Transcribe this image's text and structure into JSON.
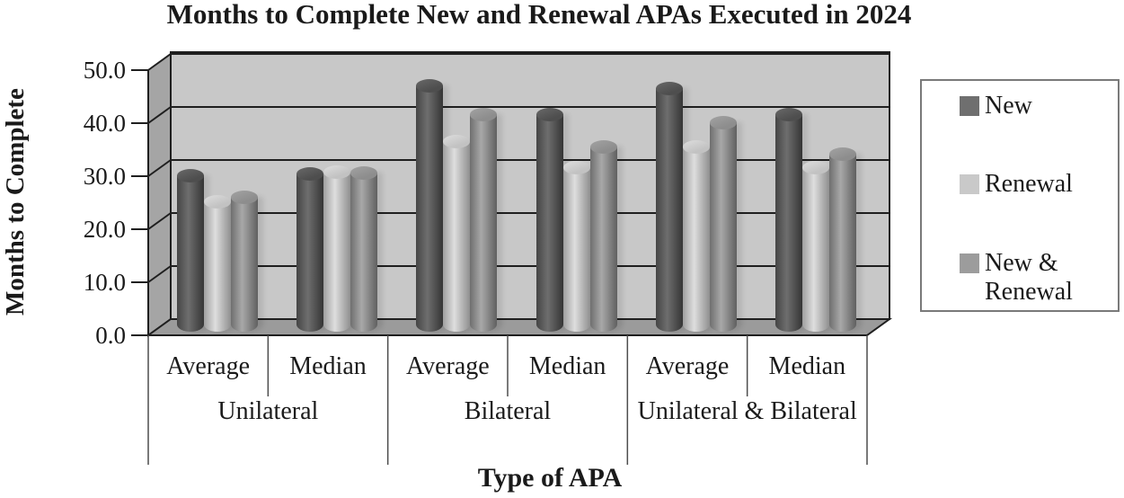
{
  "title": "Months to Complete New and Renewal APAs Executed in 2024",
  "y_axis": {
    "label": "Months to Complete",
    "tick_labels": [
      "50.0",
      "40.0",
      "30.0",
      "20.0",
      "10.0",
      "0.0"
    ]
  },
  "x_axis": {
    "label": "Type of APA",
    "stat_labels": [
      "Average",
      "Median",
      "Average",
      "Median",
      "Average",
      "Median"
    ],
    "group_labels": [
      "Unilateral",
      "Bilateral",
      "Unilateral & Bilateral"
    ]
  },
  "legend": {
    "items": [
      {
        "label": "New",
        "swatch_color": "#6f6f6f"
      },
      {
        "label": "Renewal",
        "swatch_color": "#c9c9c9"
      },
      {
        "label": "New & Renewal",
        "swatch_color": "#9c9c9c"
      }
    ]
  },
  "colors": {
    "back_wall": "#c8c8c8",
    "side_wall": "#a5a5a5",
    "floor": "#9b9b9b",
    "gridline": "#1f1f1f",
    "separator": "#4d4d4d",
    "text": "#1a1a1a",
    "legend_border": "#7a7a7a"
  },
  "chart_data": {
    "type": "bar",
    "style": "3d-cylinder",
    "title": "Months to Complete New and Renewal APAs Executed in 2024",
    "xlabel": "Type of APA",
    "ylabel": "Months to Complete",
    "ylim": [
      0,
      50
    ],
    "ytick_step": 10,
    "grid": true,
    "legend_position": "right",
    "categories": [
      {
        "group": "Unilateral",
        "stat": "Average"
      },
      {
        "group": "Unilateral",
        "stat": "Median"
      },
      {
        "group": "Bilateral",
        "stat": "Average"
      },
      {
        "group": "Bilateral",
        "stat": "Median"
      },
      {
        "group": "Unilateral & Bilateral",
        "stat": "Average"
      },
      {
        "group": "Unilateral & Bilateral",
        "stat": "Median"
      }
    ],
    "series": [
      {
        "name": "New",
        "values": [
          29.5,
          29.8,
          46.5,
          41.0,
          46.0,
          41.0
        ],
        "colors": {
          "edge": "#454545",
          "mid": "#6e6e6e",
          "edge2": "#353535",
          "cap": "#4e4e4e",
          "cap_light": "#636363"
        }
      },
      {
        "name": "Renewal",
        "values": [
          24.5,
          30.2,
          36.0,
          31.0,
          35.0,
          31.0
        ],
        "colors": {
          "edge": "#9f9f9f",
          "mid": "#dedede",
          "edge2": "#8f8f8f",
          "cap": "#c2c2c2",
          "cap_light": "#d8d8d8"
        }
      },
      {
        "name": "New & Renewal",
        "values": [
          25.5,
          30.0,
          41.0,
          35.0,
          39.5,
          33.5
        ],
        "colors": {
          "edge": "#6f6f6f",
          "mid": "#a8a8a8",
          "edge2": "#606060",
          "cap": "#8d8d8d",
          "cap_light": "#9e9e9e"
        }
      }
    ]
  }
}
